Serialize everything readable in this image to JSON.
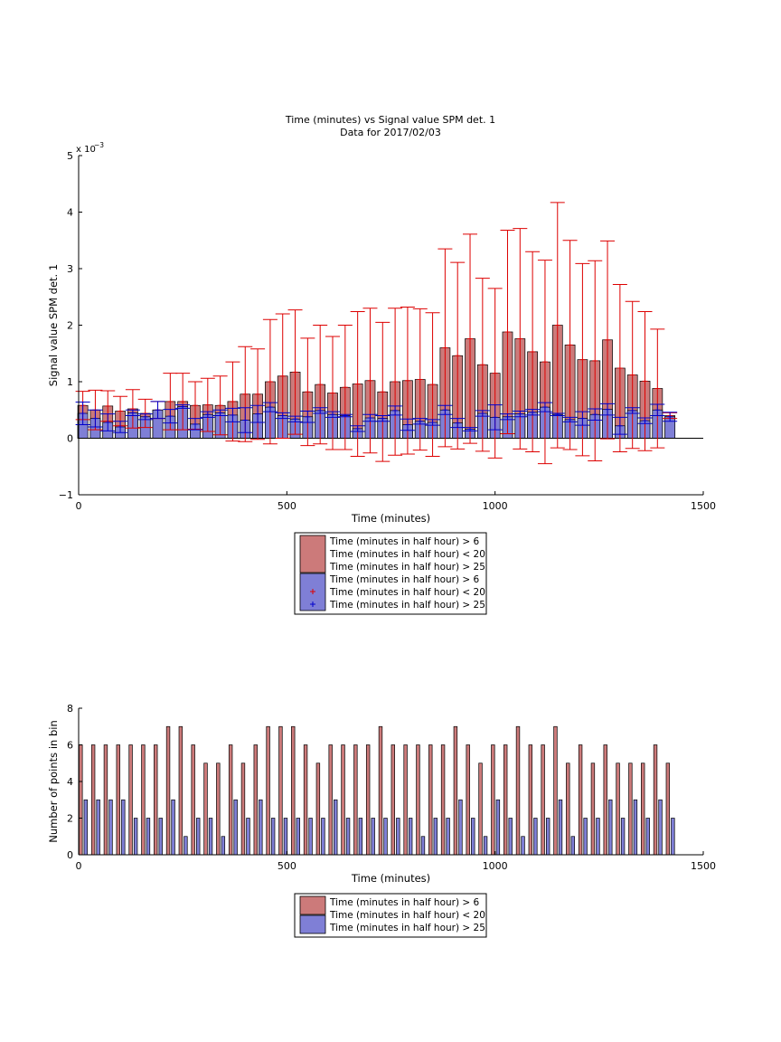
{
  "chart_data": [
    {
      "type": "bar",
      "title": "Time (minutes) vs Signal value SPM det. 1",
      "subtitle": "Data for 2017/02/03",
      "xlabel": "Time (minutes)",
      "ylabel": "Signal value SPM det. 1",
      "exponent_label": "x 10",
      "exponent_power": "−3",
      "xlim": [
        0,
        1500
      ],
      "ylim": [
        -1,
        5
      ],
      "xticks": [
        0,
        500,
        1000,
        1500
      ],
      "yticks": [
        -1,
        0,
        1,
        2,
        3,
        4,
        5
      ],
      "xtick_labels": [
        "0",
        "500",
        "1000",
        "1500"
      ],
      "ytick_labels": [
        "−1",
        "0",
        "1",
        "2",
        "3",
        "4",
        "5"
      ],
      "bar_width": 24,
      "legend_position": "below",
      "legend": [
        {
          "label": "Time (minutes in half hour) > 6",
          "kind": "patch",
          "color": "#cc7a7a"
        },
        {
          "label": "Time (minutes in half hour) < 20",
          "kind": "none",
          "color": ""
        },
        {
          "label": "Time (minutes in half hour) > 25",
          "kind": "patch",
          "color": "#7f7fd6"
        },
        {
          "label": "Time (minutes in half hour) > 6",
          "kind": "none",
          "color": ""
        },
        {
          "label": "Time (minutes in half hour) < 20",
          "kind": "marker",
          "color": "#dd0000"
        },
        {
          "label": "Time (minutes in half hour) > 25",
          "kind": "marker",
          "color": "#0000cc"
        }
      ],
      "x": [
        10,
        40,
        70,
        100,
        130,
        160,
        190,
        220,
        250,
        280,
        310,
        340,
        370,
        400,
        430,
        460,
        490,
        520,
        550,
        580,
        610,
        640,
        670,
        700,
        730,
        760,
        790,
        820,
        850,
        880,
        910,
        940,
        970,
        1000,
        1030,
        1060,
        1090,
        1120,
        1150,
        1180,
        1210,
        1240,
        1270,
        1300,
        1330,
        1360,
        1390,
        1420
      ],
      "series": [
        {
          "name": "Time (minutes in half hour) > 6",
          "color": "#cc7a7a",
          "values": [
            0.58,
            0.5,
            0.57,
            0.48,
            0.52,
            0.44,
            0.5,
            0.65,
            0.65,
            0.58,
            0.59,
            0.58,
            0.65,
            0.78,
            0.78,
            1.0,
            1.1,
            1.17,
            0.82,
            0.95,
            0.8,
            0.9,
            0.96,
            1.02,
            0.82,
            1.0,
            1.02,
            1.04,
            0.95,
            1.6,
            1.46,
            1.76,
            1.3,
            1.15,
            1.88,
            1.76,
            1.53,
            1.35,
            2.0,
            1.65,
            1.39,
            1.37,
            1.74,
            1.24,
            1.12,
            1.01,
            0.88,
            0.4
          ],
          "err": [
            0.25,
            0.35,
            0.27,
            0.26,
            0.34,
            0.25,
            0.15,
            0.5,
            0.5,
            0.42,
            0.47,
            0.52,
            0.7,
            0.84,
            0.8,
            1.1,
            1.1,
            1.1,
            0.95,
            1.05,
            1.0,
            1.1,
            1.28,
            1.28,
            1.23,
            1.3,
            1.3,
            1.25,
            1.27,
            1.75,
            1.65,
            1.85,
            1.53,
            1.5,
            1.8,
            1.95,
            1.77,
            1.8,
            2.17,
            1.85,
            1.7,
            1.77,
            1.75,
            1.48,
            1.3,
            1.23,
            1.05,
            0.05
          ]
        },
        {
          "name": "Time (minutes in half hour) > 25",
          "color": "#7f7fd6",
          "values": [
            0.44,
            0.35,
            0.28,
            0.2,
            0.45,
            0.38,
            0.5,
            0.39,
            0.56,
            0.25,
            0.42,
            0.45,
            0.41,
            0.32,
            0.43,
            0.55,
            0.4,
            0.34,
            0.38,
            0.49,
            0.42,
            0.4,
            0.17,
            0.36,
            0.35,
            0.49,
            0.24,
            0.3,
            0.28,
            0.5,
            0.27,
            0.16,
            0.44,
            0.37,
            0.38,
            0.43,
            0.46,
            0.55,
            0.42,
            0.33,
            0.35,
            0.42,
            0.51,
            0.22,
            0.49,
            0.31,
            0.5,
            0.38
          ],
          "err": [
            0.2,
            0.15,
            0.15,
            0.1,
            0.05,
            0.05,
            0.15,
            0.12,
            0.03,
            0.1,
            0.05,
            0.05,
            0.12,
            0.22,
            0.15,
            0.08,
            0.05,
            0.05,
            0.1,
            0.05,
            0.05,
            0.02,
            0.05,
            0.06,
            0.05,
            0.08,
            0.1,
            0.05,
            0.05,
            0.08,
            0.08,
            0.03,
            0.05,
            0.22,
            0.05,
            0.05,
            0.05,
            0.08,
            0.02,
            0.04,
            0.12,
            0.1,
            0.1,
            0.15,
            0.05,
            0.05,
            0.1,
            0.08
          ]
        }
      ]
    },
    {
      "type": "bar",
      "xlabel": "Time (minutes)",
      "ylabel": "Number of points in bin",
      "xlim": [
        0,
        1500
      ],
      "ylim": [
        0,
        8
      ],
      "xticks": [
        0,
        500,
        1000,
        1500
      ],
      "yticks": [
        0,
        2,
        4,
        6,
        8
      ],
      "xtick_labels": [
        "0",
        "500",
        "1000",
        "1500"
      ],
      "ytick_labels": [
        "0",
        "2",
        "4",
        "6",
        "8"
      ],
      "bar_width": 8,
      "legend_position": "below",
      "legend": [
        {
          "label": "Time (minutes in half hour) > 6",
          "kind": "patch",
          "color": "#cc7a7a"
        },
        {
          "label": "Time (minutes in half hour) < 20",
          "kind": "none",
          "color": ""
        },
        {
          "label": "Time (minutes in half hour) > 25",
          "kind": "patch",
          "color": "#7f7fd6"
        }
      ],
      "series": [
        {
          "name": "Time (minutes in half hour) > 6",
          "color": "#cc7a7a",
          "x": [
            5,
            35,
            65,
            95,
            125,
            155,
            185,
            215,
            245,
            275,
            305,
            335,
            365,
            395,
            425,
            455,
            485,
            515,
            545,
            575,
            605,
            635,
            665,
            695,
            725,
            755,
            785,
            815,
            845,
            875,
            905,
            935,
            965,
            995,
            1025,
            1055,
            1085,
            1115,
            1145,
            1175,
            1205,
            1235,
            1265,
            1295,
            1325,
            1355,
            1385,
            1415
          ],
          "values": [
            6,
            6,
            6,
            6,
            6,
            6,
            6,
            7,
            7,
            6,
            5,
            5,
            6,
            5,
            6,
            7,
            7,
            7,
            6,
            5,
            6,
            6,
            6,
            6,
            7,
            6,
            6,
            6,
            6,
            6,
            7,
            6,
            5,
            6,
            6,
            7,
            6,
            6,
            7,
            5,
            6,
            5,
            6,
            5,
            5,
            5,
            6,
            5
          ]
        },
        {
          "name": "Time (minutes in half hour) > 25",
          "color": "#7f7fd6",
          "x": [
            17,
            47,
            77,
            107,
            137,
            167,
            197,
            227,
            257,
            287,
            317,
            347,
            377,
            407,
            437,
            467,
            497,
            527,
            557,
            587,
            617,
            647,
            677,
            707,
            737,
            767,
            797,
            827,
            857,
            887,
            917,
            947,
            977,
            1007,
            1037,
            1067,
            1097,
            1127,
            1157,
            1187,
            1217,
            1247,
            1277,
            1307,
            1337,
            1367,
            1397,
            1427
          ],
          "values": [
            3,
            3,
            3,
            3,
            2,
            2,
            2,
            3,
            1,
            2,
            2,
            1,
            3,
            2,
            3,
            2,
            2,
            2,
            2,
            2,
            3,
            2,
            2,
            2,
            2,
            2,
            2,
            1,
            2,
            2,
            3,
            2,
            1,
            3,
            2,
            1,
            2,
            2,
            3,
            1,
            2,
            2,
            3,
            2,
            3,
            2,
            3,
            2
          ]
        }
      ]
    }
  ]
}
